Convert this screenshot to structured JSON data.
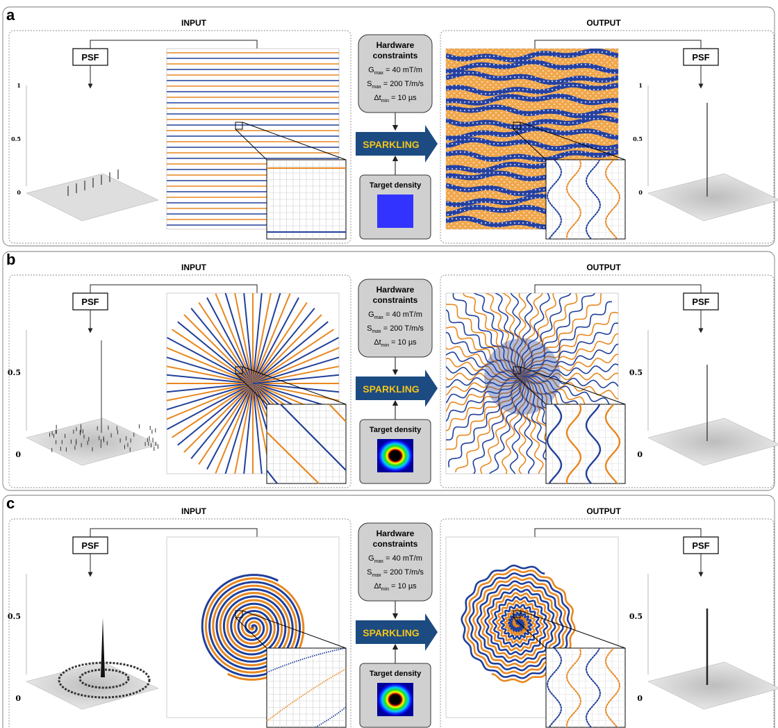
{
  "panels": [
    {
      "letter": "a",
      "input_title": "INPUT",
      "output_title": "OUTPUT",
      "psf_label": "PSF",
      "psf_in_ticks": [
        "1",
        "0.5",
        "0"
      ],
      "psf_out_ticks": [
        "1",
        "0.5",
        "0"
      ],
      "input_pattern": "cartesian",
      "output_pattern": "sparkling-cartesian",
      "density_map": "uniform"
    },
    {
      "letter": "b",
      "input_title": "INPUT",
      "output_title": "OUTPUT",
      "psf_label": "PSF",
      "psf_in_ticks": [
        "0.5",
        "0"
      ],
      "psf_out_ticks": [
        "0.5",
        "0"
      ],
      "input_pattern": "radial",
      "output_pattern": "sparkling-radial",
      "density_map": "variable"
    },
    {
      "letter": "c",
      "input_title": "INPUT",
      "output_title": "OUTPUT",
      "psf_label": "PSF",
      "psf_in_ticks": [
        "0.5",
        "0"
      ],
      "psf_out_ticks": [
        "0.5",
        "0"
      ],
      "input_pattern": "spiral",
      "output_pattern": "sparkling-spiral",
      "density_map": "variable"
    }
  ],
  "hardware": {
    "title_line1": "Hardware",
    "title_line2": "constraints",
    "gmax_symbol": "G",
    "gmax_sub": "max",
    "gmax_value": " = 40 mT/m",
    "smax_symbol": "S",
    "smax_sub": "max",
    "smax_value": " = 200 T/m/s",
    "dt_symbol": "Δt",
    "dt_sub": "min",
    "dt_value": " = 10 µs"
  },
  "arrow_label": "SPARKLING",
  "target_density_label": "Target density",
  "colors": {
    "orange": "#e8871e",
    "blue": "#1f3f9a",
    "arrow": "#1c4b82",
    "arrow_text": "#f5c518",
    "box_gray": "#d0d0d0",
    "uniform_density": "#3333ff"
  }
}
